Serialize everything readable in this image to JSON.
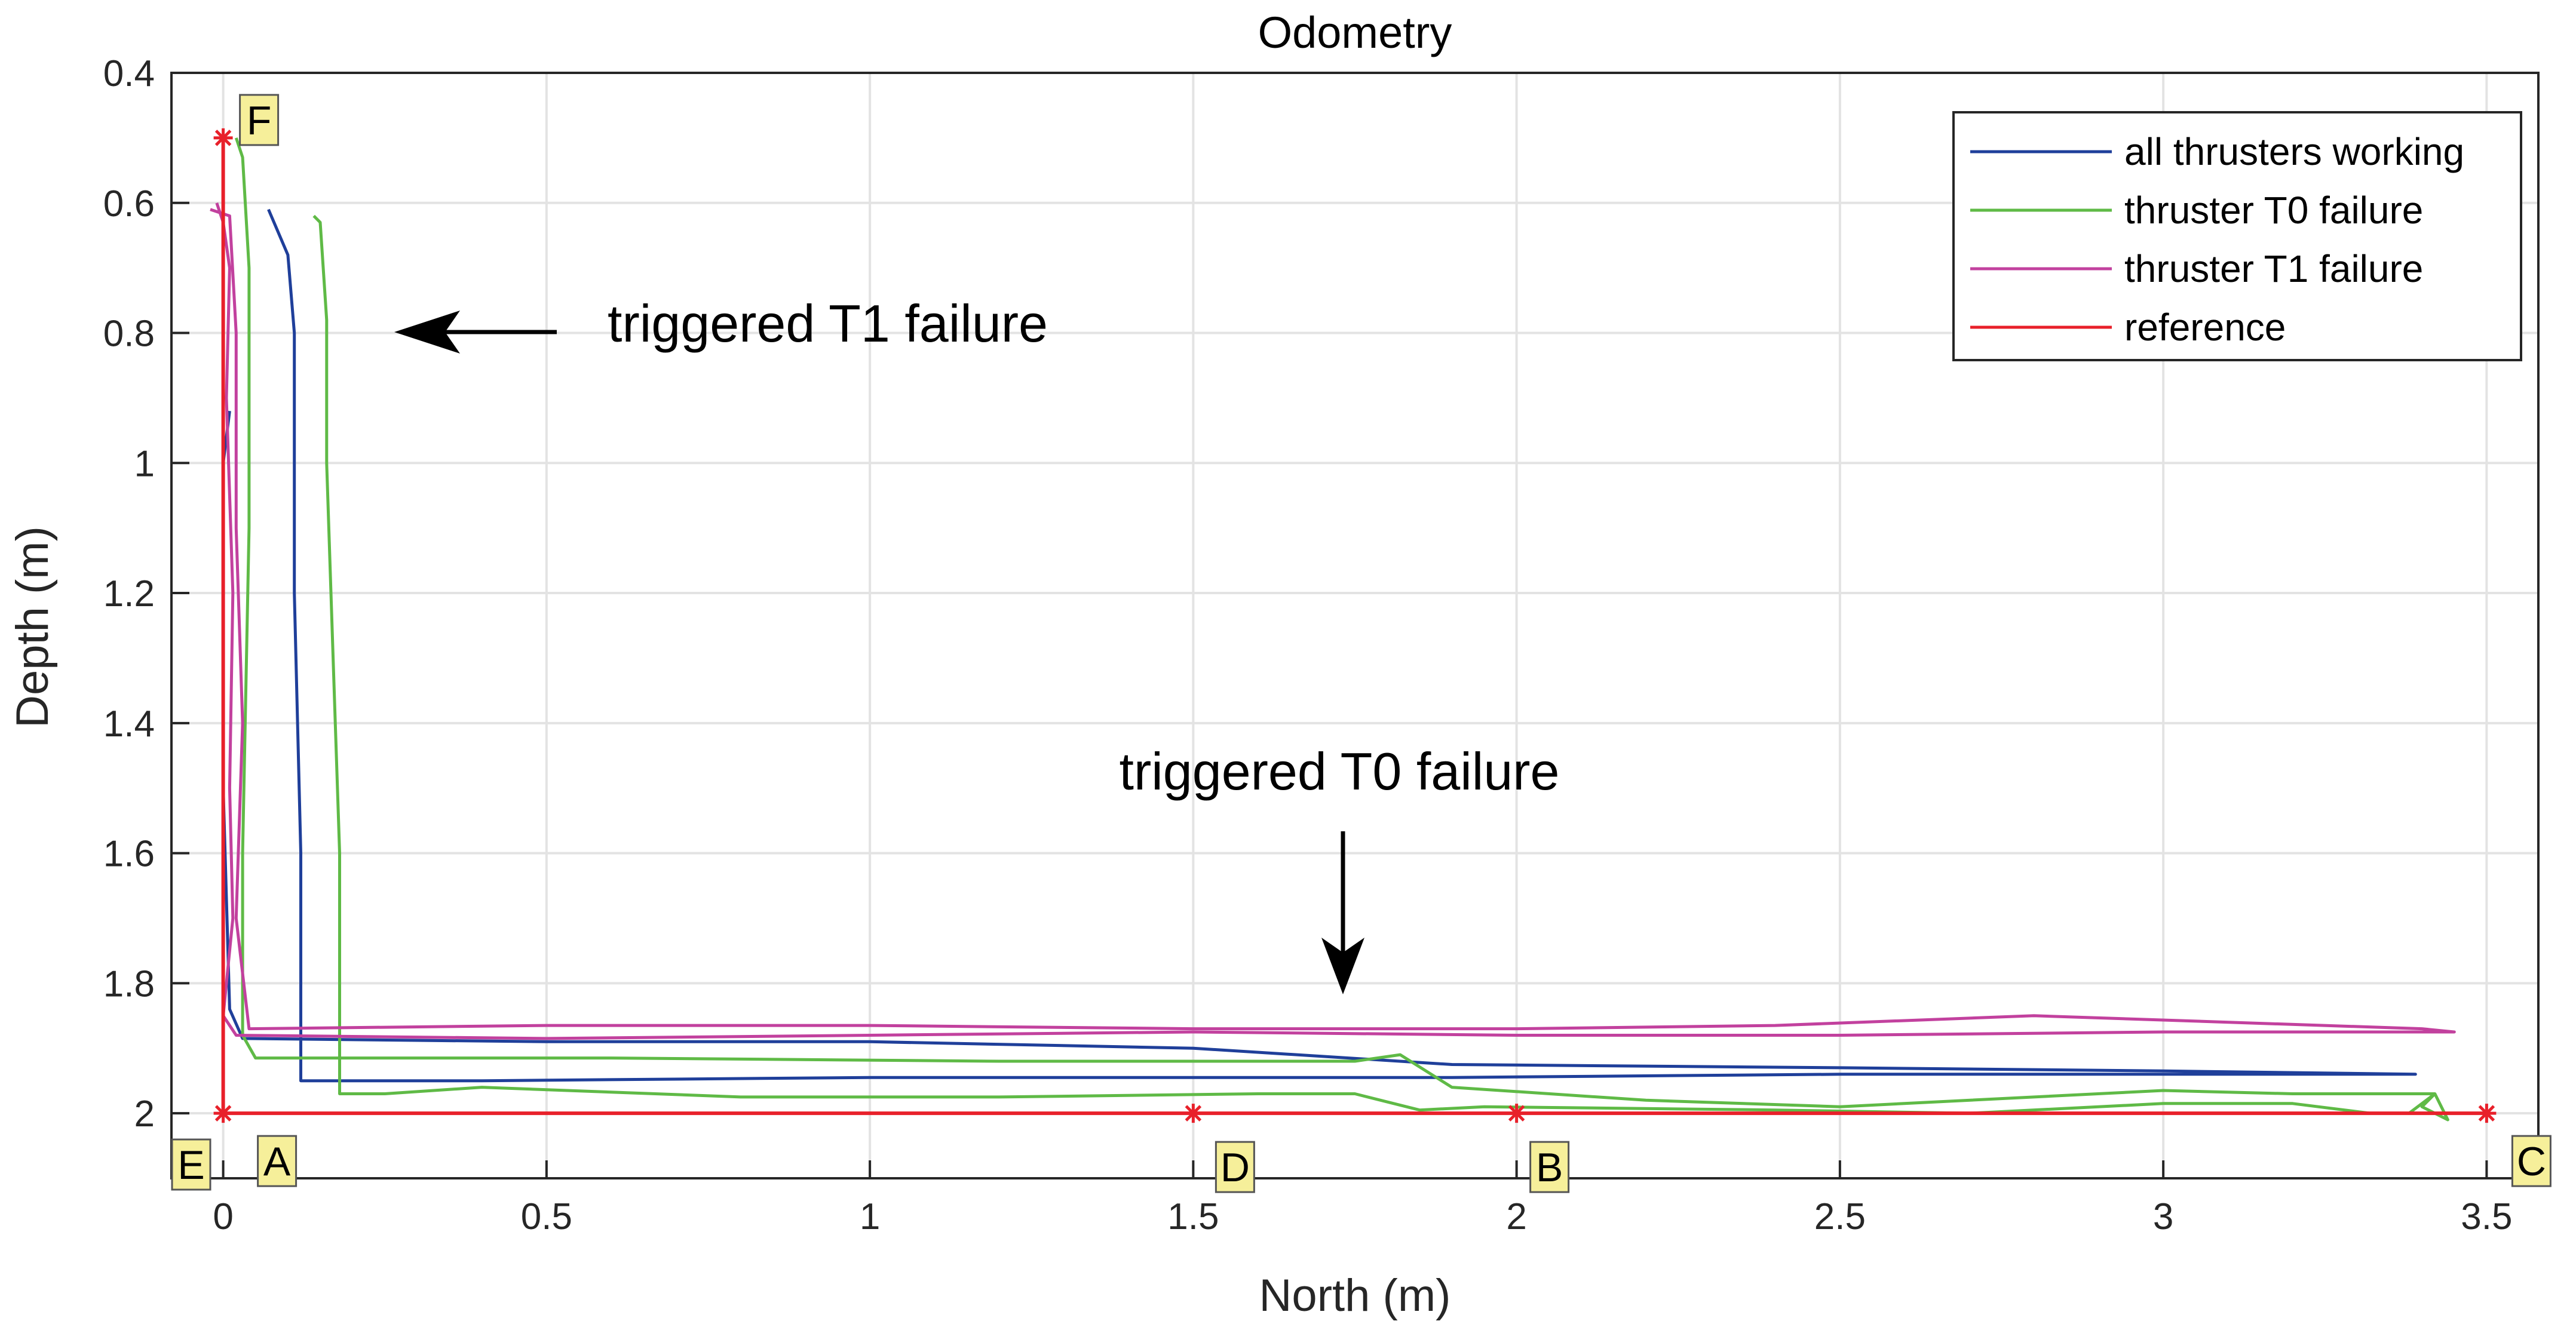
{
  "chart_data": {
    "type": "line",
    "title": "Odometry",
    "xlabel": "North (m)",
    "ylabel": "Depth (m)",
    "xlim": [
      -0.08,
      3.58
    ],
    "ylim": [
      0.4,
      2.1
    ],
    "y_reversed": true,
    "grid": true,
    "xticks": [
      0,
      0.5,
      1,
      1.5,
      2,
      2.5,
      3,
      3.5
    ],
    "xtick_labels": [
      "0",
      "0.5",
      "1",
      "1.5",
      "2",
      "2.5",
      "3",
      "3.5"
    ],
    "yticks": [
      0.4,
      0.6,
      0.8,
      1,
      1.2,
      1.4,
      1.6,
      1.8,
      2
    ],
    "ytick_labels": [
      "0.4",
      "0.6",
      "0.8",
      "1",
      "1.2",
      "1.4",
      "1.6",
      "1.8",
      "2"
    ],
    "legend_position": "top-right",
    "series": [
      {
        "name": "all thrusters working",
        "color": "#1f3f9a",
        "points": [
          [
            0.07,
            0.61
          ],
          [
            0.1,
            0.68
          ],
          [
            0.11,
            0.8
          ],
          [
            0.11,
            1.2
          ],
          [
            0.12,
            1.6
          ],
          [
            0.12,
            1.89
          ],
          [
            0.12,
            1.95
          ],
          [
            0.4,
            1.95
          ],
          [
            1.0,
            1.945
          ],
          [
            1.5,
            1.945
          ],
          [
            1.9,
            1.945
          ],
          [
            2.5,
            1.94
          ],
          [
            3.0,
            1.94
          ],
          [
            3.38,
            1.94
          ],
          [
            3.39,
            1.94
          ],
          [
            3.0,
            1.935
          ],
          [
            2.5,
            1.93
          ],
          [
            1.9,
            1.925
          ],
          [
            1.5,
            1.9
          ],
          [
            1.0,
            1.89
          ],
          [
            0.5,
            1.89
          ],
          [
            0.03,
            1.885
          ],
          [
            0.01,
            1.84
          ],
          [
            0.0,
            1.5
          ],
          [
            0.0,
            1.0
          ],
          [
            0.01,
            0.92
          ]
        ]
      },
      {
        "name": "thruster T0 failure",
        "color": "#5fba46",
        "points": [
          [
            0.14,
            0.62
          ],
          [
            0.15,
            0.63
          ],
          [
            0.16,
            0.78
          ],
          [
            0.16,
            1.0
          ],
          [
            0.17,
            1.3
          ],
          [
            0.18,
            1.6
          ],
          [
            0.18,
            1.97
          ],
          [
            0.25,
            1.97
          ],
          [
            0.4,
            1.96
          ],
          [
            0.8,
            1.975
          ],
          [
            1.2,
            1.975
          ],
          [
            1.6,
            1.97
          ],
          [
            1.75,
            1.97
          ],
          [
            1.85,
            1.995
          ],
          [
            1.95,
            1.99
          ],
          [
            2.4,
            1.995
          ],
          [
            2.7,
            2.0
          ],
          [
            3.0,
            1.985
          ],
          [
            3.2,
            1.985
          ],
          [
            3.32,
            2.0
          ],
          [
            3.38,
            2.0
          ],
          [
            3.42,
            1.97
          ],
          [
            3.4,
            1.99
          ],
          [
            3.44,
            2.01
          ],
          [
            3.42,
            1.97
          ],
          [
            3.2,
            1.97
          ],
          [
            3.0,
            1.965
          ],
          [
            2.5,
            1.99
          ],
          [
            2.2,
            1.98
          ],
          [
            1.9,
            1.96
          ],
          [
            1.82,
            1.91
          ],
          [
            1.75,
            1.92
          ],
          [
            1.2,
            1.92
          ],
          [
            0.6,
            1.915
          ],
          [
            0.05,
            1.915
          ],
          [
            0.03,
            1.88
          ],
          [
            0.03,
            1.6
          ],
          [
            0.04,
            1.1
          ],
          [
            0.04,
            0.7
          ],
          [
            0.03,
            0.53
          ],
          [
            0.02,
            0.5
          ]
        ]
      },
      {
        "name": "thruster T1 failure",
        "color": "#c2419e",
        "points": [
          [
            -0.01,
            0.6
          ],
          [
            0.0,
            0.63
          ],
          [
            0.01,
            0.7
          ],
          [
            0.005,
            0.9
          ],
          [
            0.015,
            1.2
          ],
          [
            0.01,
            1.5
          ],
          [
            0.015,
            1.7
          ],
          [
            0.0,
            1.85
          ],
          [
            0.02,
            1.88
          ],
          [
            0.5,
            1.885
          ],
          [
            1.0,
            1.88
          ],
          [
            1.5,
            1.875
          ],
          [
            2.0,
            1.88
          ],
          [
            2.5,
            1.88
          ],
          [
            3.0,
            1.875
          ],
          [
            3.35,
            1.875
          ],
          [
            3.45,
            1.875
          ],
          [
            3.4,
            1.87
          ],
          [
            2.8,
            1.85
          ],
          [
            2.4,
            1.865
          ],
          [
            2.0,
            1.87
          ],
          [
            1.5,
            1.87
          ],
          [
            1.0,
            1.865
          ],
          [
            0.5,
            1.865
          ],
          [
            0.04,
            1.87
          ],
          [
            0.02,
            1.7
          ],
          [
            0.03,
            1.4
          ],
          [
            0.02,
            1.1
          ],
          [
            0.02,
            0.8
          ],
          [
            0.01,
            0.62
          ],
          [
            -0.02,
            0.61
          ]
        ]
      },
      {
        "name": "reference",
        "color": "#e8202a",
        "points": [
          [
            0,
            0.5
          ],
          [
            0,
            2
          ],
          [
            1.5,
            2
          ],
          [
            2,
            2
          ],
          [
            3.5,
            2
          ]
        ]
      }
    ],
    "markers": [
      {
        "label": "F",
        "x": 0,
        "y": 0.5
      },
      {
        "label": "A",
        "x": 0,
        "y": 2
      },
      {
        "label": "D",
        "x": 1.5,
        "y": 2
      },
      {
        "label": "B",
        "x": 2,
        "y": 2
      },
      {
        "label": "C",
        "x": 3.5,
        "y": 2
      },
      {
        "label": "E",
        "x": -0.08,
        "y": 2.1
      }
    ],
    "annotations": [
      {
        "text": "triggered T1 failure",
        "arrow": "left"
      },
      {
        "text": "triggered T0 failure",
        "arrow": "down"
      }
    ]
  }
}
